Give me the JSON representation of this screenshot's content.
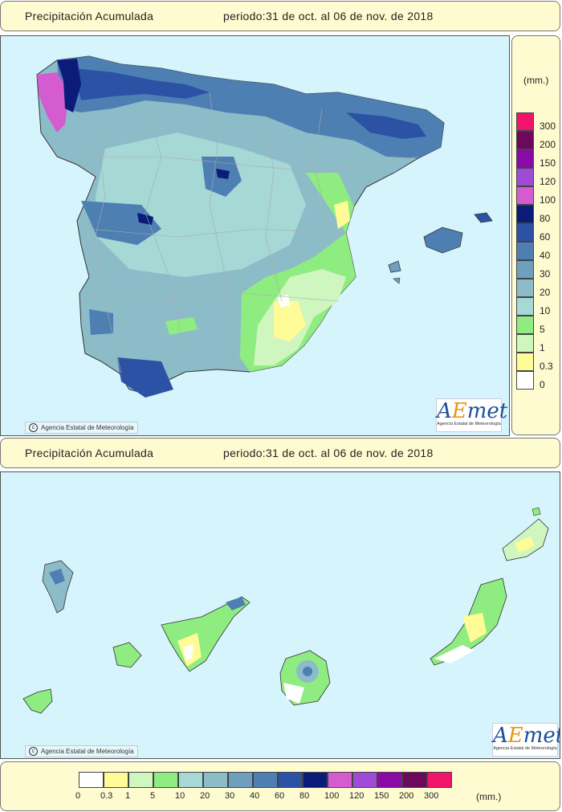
{
  "panels": [
    {
      "title": "Precipitación Acumulada",
      "period": "periodo:31 de oct. al 06 de nov. de 2018"
    },
    {
      "title": "Precipitación Acumulada",
      "period": "periodo:31 de oct. al 06 de nov. de 2018"
    }
  ],
  "credit": "Agencia Estatal de Meteorología",
  "logo": {
    "brand_a": "A",
    "brand_e": "E",
    "brand_rest": "met",
    "subtitle": "Agencia Estatal de Meteorología"
  },
  "legend": {
    "unit": "(mm.)",
    "classes": [
      {
        "label": "0",
        "color": "#ffffff"
      },
      {
        "label": "0.3",
        "color": "#fffb96"
      },
      {
        "label": "1",
        "color": "#d0f6c0"
      },
      {
        "label": "5",
        "color": "#8fec80"
      },
      {
        "label": "10",
        "color": "#a6d8d6"
      },
      {
        "label": "20",
        "color": "#8cbcc8"
      },
      {
        "label": "30",
        "color": "#6e9fbd"
      },
      {
        "label": "40",
        "color": "#4e7fb3"
      },
      {
        "label": "60",
        "color": "#2c52a6"
      },
      {
        "label": "80",
        "color": "#0a1c78"
      },
      {
        "label": "100",
        "color": "#d55cd0"
      },
      {
        "label": "120",
        "color": "#a04ad8"
      },
      {
        "label": "150",
        "color": "#8a0aa8"
      },
      {
        "label": "200",
        "color": "#6b0a5c"
      },
      {
        "label": "300",
        "color": "#f0146a"
      }
    ]
  }
}
